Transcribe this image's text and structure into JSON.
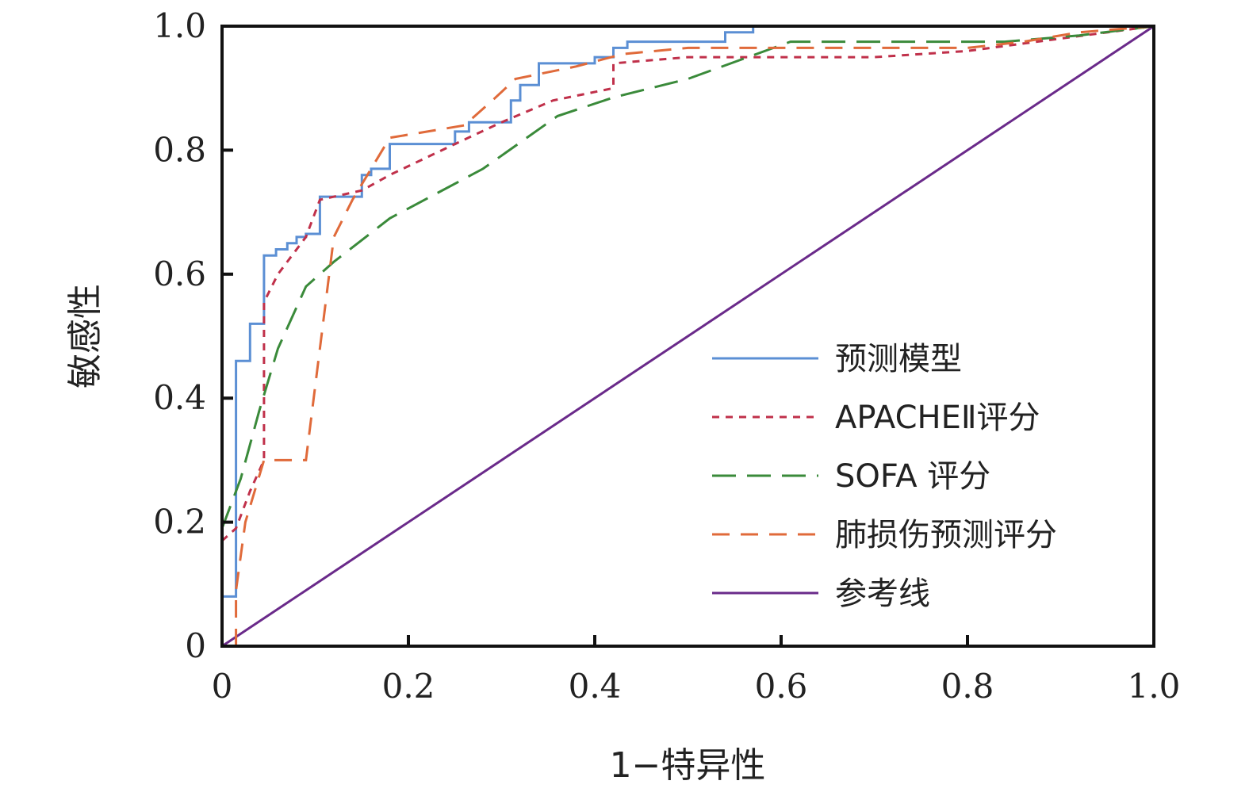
{
  "chart_data": {
    "type": "line",
    "xlabel": "1−特异性",
    "ylabel": "敏感性",
    "xlim": [
      0,
      1
    ],
    "ylim": [
      0,
      1
    ],
    "x_ticks": [
      {
        "value": 0,
        "label": "0"
      },
      {
        "value": 0.2,
        "label": "0.2"
      },
      {
        "value": 0.4,
        "label": "0.4"
      },
      {
        "value": 0.6,
        "label": "0.6"
      },
      {
        "value": 0.8,
        "label": "0.8"
      },
      {
        "value": 1.0,
        "label": "1.0"
      }
    ],
    "y_ticks": [
      {
        "value": 0,
        "label": "0"
      },
      {
        "value": 0.2,
        "label": "0.2"
      },
      {
        "value": 0.4,
        "label": "0.4"
      },
      {
        "value": 0.6,
        "label": "0.6"
      },
      {
        "value": 0.8,
        "label": "0.8"
      },
      {
        "value": 1.0,
        "label": "1.0"
      }
    ],
    "grid": false,
    "legend_position": "bottom-right",
    "series": [
      {
        "name": "预测模型",
        "color": "#5b8fd4",
        "dash": "solid",
        "points": [
          [
            0,
            0.08
          ],
          [
            0.015,
            0.08
          ],
          [
            0.015,
            0.46
          ],
          [
            0.03,
            0.46
          ],
          [
            0.03,
            0.52
          ],
          [
            0.045,
            0.52
          ],
          [
            0.045,
            0.63
          ],
          [
            0.058,
            0.63
          ],
          [
            0.058,
            0.64
          ],
          [
            0.07,
            0.64
          ],
          [
            0.07,
            0.65
          ],
          [
            0.08,
            0.65
          ],
          [
            0.08,
            0.66
          ],
          [
            0.09,
            0.66
          ],
          [
            0.09,
            0.665
          ],
          [
            0.105,
            0.665
          ],
          [
            0.105,
            0.725
          ],
          [
            0.15,
            0.725
          ],
          [
            0.15,
            0.76
          ],
          [
            0.16,
            0.76
          ],
          [
            0.16,
            0.77
          ],
          [
            0.18,
            0.77
          ],
          [
            0.18,
            0.81
          ],
          [
            0.25,
            0.81
          ],
          [
            0.25,
            0.83
          ],
          [
            0.265,
            0.83
          ],
          [
            0.265,
            0.845
          ],
          [
            0.31,
            0.845
          ],
          [
            0.31,
            0.88
          ],
          [
            0.32,
            0.88
          ],
          [
            0.32,
            0.905
          ],
          [
            0.34,
            0.905
          ],
          [
            0.34,
            0.94
          ],
          [
            0.4,
            0.94
          ],
          [
            0.4,
            0.95
          ],
          [
            0.42,
            0.95
          ],
          [
            0.42,
            0.965
          ],
          [
            0.435,
            0.965
          ],
          [
            0.435,
            0.975
          ],
          [
            0.54,
            0.975
          ],
          [
            0.54,
            0.99
          ],
          [
            0.57,
            0.99
          ],
          [
            0.57,
            1.0
          ]
        ]
      },
      {
        "name": "APACHEⅡ评分",
        "color": "#c0304a",
        "dash": "short-dash",
        "points": [
          [
            0,
            0.17
          ],
          [
            0.015,
            0.19
          ],
          [
            0.03,
            0.25
          ],
          [
            0.045,
            0.3
          ],
          [
            0.045,
            0.555
          ],
          [
            0.06,
            0.6
          ],
          [
            0.09,
            0.66
          ],
          [
            0.105,
            0.72
          ],
          [
            0.15,
            0.735
          ],
          [
            0.18,
            0.76
          ],
          [
            0.25,
            0.81
          ],
          [
            0.3,
            0.845
          ],
          [
            0.355,
            0.88
          ],
          [
            0.42,
            0.9
          ],
          [
            0.42,
            0.94
          ],
          [
            0.5,
            0.95
          ],
          [
            0.6,
            0.95
          ],
          [
            0.7,
            0.95
          ],
          [
            0.8,
            0.96
          ],
          [
            0.9,
            0.98
          ],
          [
            1.0,
            1.0
          ]
        ]
      },
      {
        "name": "SOFA 评分",
        "color": "#3a8a3a",
        "dash": "long-dash",
        "points": [
          [
            0,
            0.19
          ],
          [
            0.02,
            0.27
          ],
          [
            0.04,
            0.38
          ],
          [
            0.06,
            0.48
          ],
          [
            0.09,
            0.58
          ],
          [
            0.12,
            0.62
          ],
          [
            0.18,
            0.69
          ],
          [
            0.28,
            0.77
          ],
          [
            0.36,
            0.855
          ],
          [
            0.42,
            0.885
          ],
          [
            0.5,
            0.915
          ],
          [
            0.61,
            0.975
          ],
          [
            0.84,
            0.975
          ],
          [
            0.92,
            0.985
          ],
          [
            1.0,
            1.0
          ]
        ]
      },
      {
        "name": "肺损伤预测评分",
        "color": "#e06a3a",
        "dash": "medium-dash",
        "points": [
          [
            0.015,
            0
          ],
          [
            0.015,
            0.09
          ],
          [
            0.025,
            0.2
          ],
          [
            0.045,
            0.3
          ],
          [
            0.09,
            0.3
          ],
          [
            0.12,
            0.66
          ],
          [
            0.14,
            0.72
          ],
          [
            0.18,
            0.82
          ],
          [
            0.26,
            0.84
          ],
          [
            0.29,
            0.88
          ],
          [
            0.315,
            0.915
          ],
          [
            0.38,
            0.935
          ],
          [
            0.43,
            0.955
          ],
          [
            0.5,
            0.965
          ],
          [
            0.8,
            0.965
          ],
          [
            0.86,
            0.975
          ],
          [
            0.92,
            0.99
          ],
          [
            1.0,
            1.0
          ]
        ]
      },
      {
        "name": "参考线",
        "color": "#6a2a8a",
        "dash": "solid",
        "points": [
          [
            0,
            0
          ],
          [
            1,
            1
          ]
        ]
      }
    ]
  }
}
